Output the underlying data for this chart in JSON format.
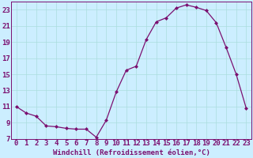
{
  "hours": [
    0,
    1,
    2,
    3,
    4,
    5,
    6,
    7,
    8,
    9,
    10,
    11,
    12,
    13,
    14,
    15,
    16,
    17,
    18,
    19,
    20,
    21,
    22,
    23
  ],
  "windchill": [
    11.0,
    10.2,
    9.8,
    8.6,
    8.5,
    8.3,
    8.2,
    8.2,
    7.2,
    9.3,
    12.8,
    15.5,
    16.0,
    19.3,
    21.5,
    22.0,
    23.2,
    23.6,
    23.3,
    22.9,
    21.4,
    18.3,
    15.0,
    10.8
  ],
  "line_color": "#7b1070",
  "marker_color": "#7b1070",
  "bg_color": "#cceeff",
  "grid_color": "#aadddd",
  "xlabel": "Windchill (Refroidissement éolien,°C)",
  "ylim": [
    7,
    24
  ],
  "xlim": [
    -0.5,
    23.5
  ],
  "yticks": [
    7,
    9,
    11,
    13,
    15,
    17,
    19,
    21,
    23
  ],
  "xticks": [
    0,
    1,
    2,
    3,
    4,
    5,
    6,
    7,
    8,
    9,
    10,
    11,
    12,
    13,
    14,
    15,
    16,
    17,
    18,
    19,
    20,
    21,
    22,
    23
  ],
  "tick_fontsize": 6.5,
  "xlabel_fontsize": 6.5,
  "font_color": "#7b1070"
}
